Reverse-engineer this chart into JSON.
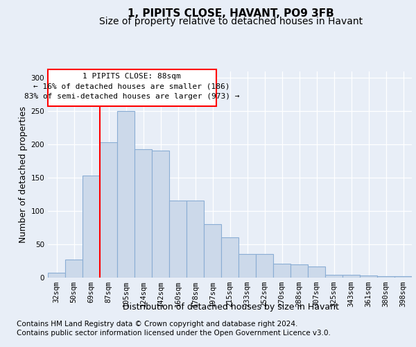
{
  "title1": "1, PIPITS CLOSE, HAVANT, PO9 3FB",
  "title2": "Size of property relative to detached houses in Havant",
  "xlabel": "Distribution of detached houses by size in Havant",
  "ylabel": "Number of detached properties",
  "footer1": "Contains HM Land Registry data © Crown copyright and database right 2024.",
  "footer2": "Contains public sector information licensed under the Open Government Licence v3.0.",
  "categories": [
    "32sqm",
    "50sqm",
    "69sqm",
    "87sqm",
    "105sqm",
    "124sqm",
    "142sqm",
    "160sqm",
    "178sqm",
    "197sqm",
    "215sqm",
    "233sqm",
    "252sqm",
    "270sqm",
    "288sqm",
    "307sqm",
    "325sqm",
    "343sqm",
    "361sqm",
    "380sqm",
    "398sqm"
  ],
  "values": [
    7,
    27,
    153,
    203,
    250,
    193,
    191,
    116,
    116,
    80,
    60,
    35,
    35,
    21,
    20,
    17,
    4,
    4,
    3,
    2,
    2
  ],
  "bar_color": "#ccd9ea",
  "bar_edge_color": "#8aadd4",
  "red_line_index": 3,
  "annotation_line1": "1 PIPITS CLOSE: 88sqm",
  "annotation_line2": "← 16% of detached houses are smaller (186)",
  "annotation_line3": "83% of semi-detached houses are larger (973) →",
  "ylim": [
    0,
    310
  ],
  "yticks": [
    0,
    50,
    100,
    150,
    200,
    250,
    300
  ],
  "bg_color": "#e8eef7",
  "plot_bg_color": "#e8eef7",
  "grid_color": "#ffffff",
  "title1_fontsize": 11,
  "title2_fontsize": 10,
  "axis_label_fontsize": 9,
  "tick_fontsize": 7.5,
  "annotation_fontsize": 8,
  "footer_fontsize": 7.5
}
